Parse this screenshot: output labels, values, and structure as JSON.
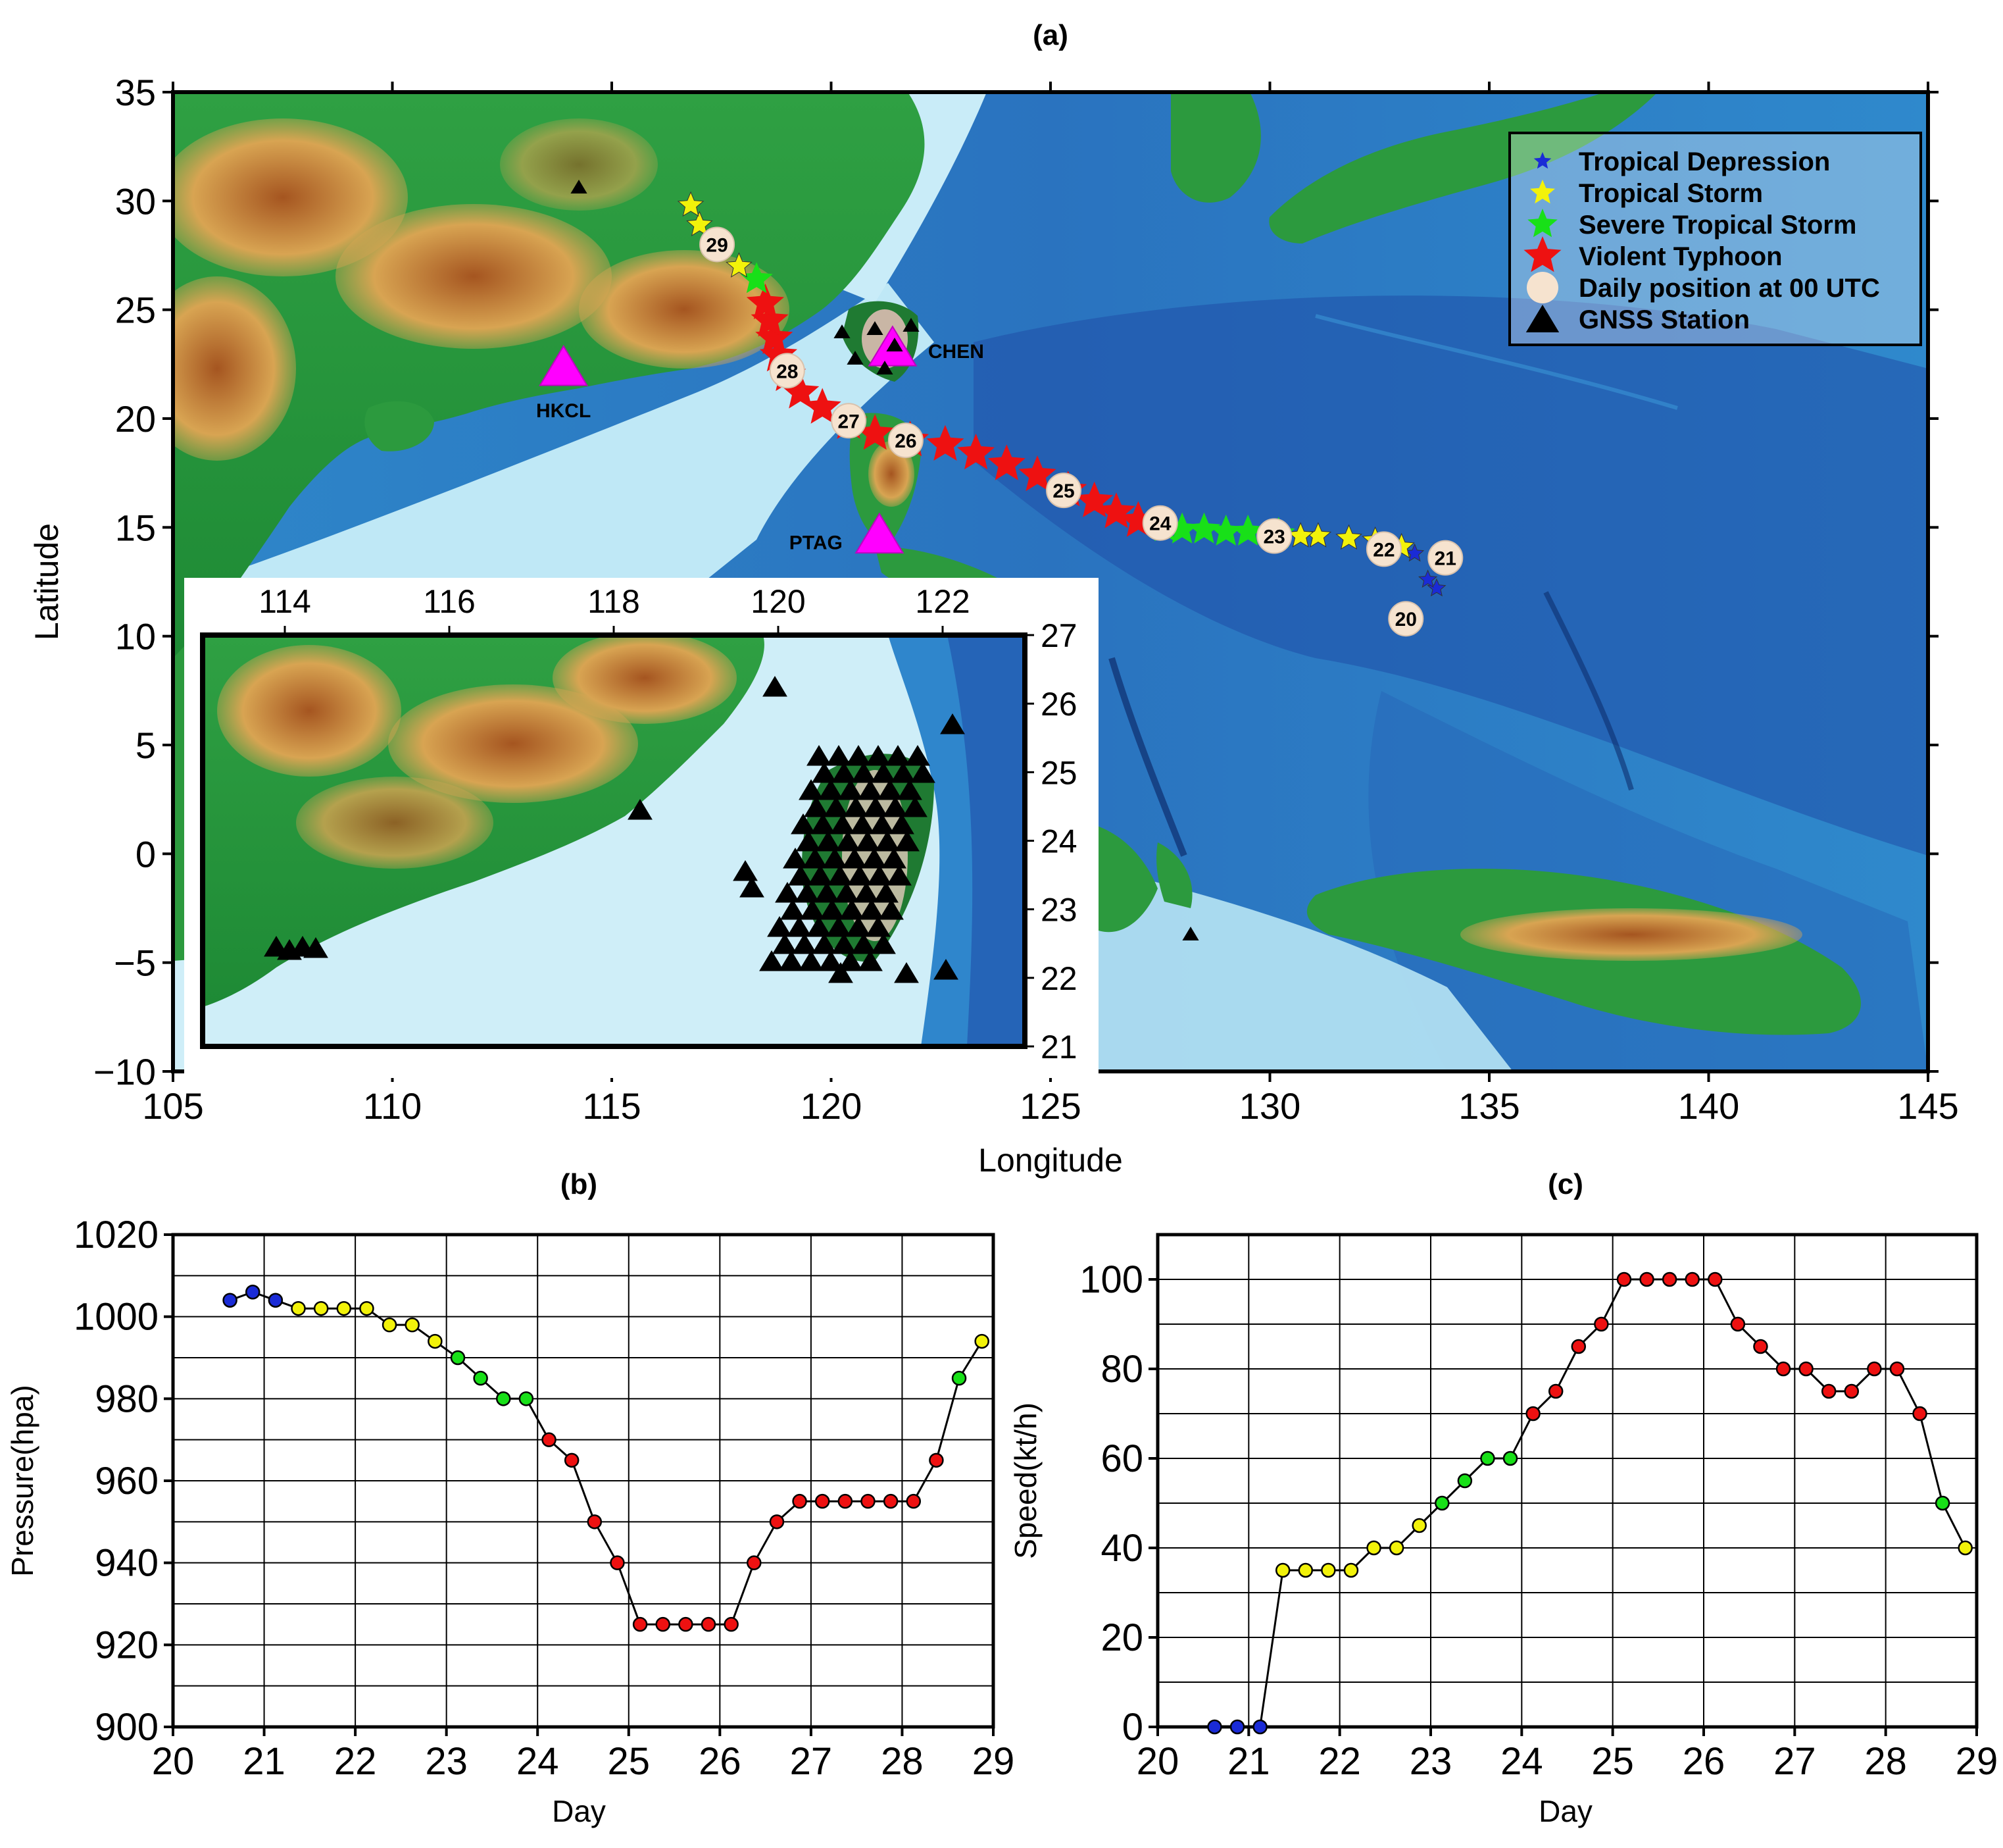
{
  "chart_data": [
    {
      "panel": "(a)",
      "type": "map",
      "xlabel": "Longitude",
      "ylabel": "Latitude",
      "xlim": [
        105,
        145
      ],
      "ylim": [
        -10,
        35
      ],
      "xticks": [
        "105",
        "110",
        "115",
        "120",
        "125",
        "130",
        "135",
        "140",
        "145"
      ],
      "yticks": [
        "35",
        "30",
        "25",
        "20",
        "15",
        "10",
        "5",
        "0",
        "−5",
        "−10"
      ],
      "legend": {
        "placement": "top-right",
        "entries": [
          {
            "label": "Tropical Depression",
            "symbol": "star",
            "color": "#1a2bd6"
          },
          {
            "label": "Tropical Storm",
            "symbol": "star",
            "color": "#f2f20a"
          },
          {
            "label": "Severe Tropical Storm",
            "symbol": "star",
            "color": "#18e018"
          },
          {
            "label": "Violent Typhoon",
            "symbol": "star",
            "color": "#ee1111"
          },
          {
            "label": "Daily position at 00 UTC",
            "symbol": "circle",
            "color": "#f6e3cf"
          },
          {
            "label": "GNSS Station",
            "symbol": "triangle",
            "color": "#000000"
          }
        ]
      },
      "track": [
        {
          "lon": 133.8,
          "lat": 12.2,
          "cat": "TD"
        },
        {
          "lon": 133.6,
          "lat": 12.6,
          "cat": "TD"
        },
        {
          "lon": 133.3,
          "lat": 13.8,
          "cat": "TD"
        },
        {
          "lon": 133.0,
          "lat": 14.1,
          "cat": "TS"
        },
        {
          "lon": 132.4,
          "lat": 14.4,
          "cat": "TS"
        },
        {
          "lon": 131.8,
          "lat": 14.5,
          "cat": "TS"
        },
        {
          "lon": 131.1,
          "lat": 14.6,
          "cat": "TS"
        },
        {
          "lon": 130.7,
          "lat": 14.6,
          "cat": "TS"
        },
        {
          "lon": 130.2,
          "lat": 14.7,
          "cat": "STS"
        },
        {
          "lon": 129.5,
          "lat": 14.8,
          "cat": "STS"
        },
        {
          "lon": 129.0,
          "lat": 14.8,
          "cat": "STS"
        },
        {
          "lon": 128.5,
          "lat": 14.9,
          "cat": "STS"
        },
        {
          "lon": 128.0,
          "lat": 14.9,
          "cat": "STS"
        },
        {
          "lon": 127.6,
          "lat": 15.0,
          "cat": "STS"
        },
        {
          "lon": 127.0,
          "lat": 15.3,
          "cat": "VTY"
        },
        {
          "lon": 126.5,
          "lat": 15.7,
          "cat": "VTY"
        },
        {
          "lon": 126.0,
          "lat": 16.2,
          "cat": "VTY"
        },
        {
          "lon": 125.4,
          "lat": 16.7,
          "cat": "VTY"
        },
        {
          "lon": 124.7,
          "lat": 17.4,
          "cat": "VTY"
        },
        {
          "lon": 124.0,
          "lat": 17.9,
          "cat": "VTY"
        },
        {
          "lon": 123.3,
          "lat": 18.4,
          "cat": "VTY"
        },
        {
          "lon": 122.6,
          "lat": 18.8,
          "cat": "VTY"
        },
        {
          "lon": 121.8,
          "lat": 19.0,
          "cat": "VTY"
        },
        {
          "lon": 121.0,
          "lat": 19.3,
          "cat": "VTY"
        },
        {
          "lon": 120.4,
          "lat": 19.8,
          "cat": "VTY"
        },
        {
          "lon": 119.8,
          "lat": 20.5,
          "cat": "VTY"
        },
        {
          "lon": 119.3,
          "lat": 21.2,
          "cat": "VTY"
        },
        {
          "lon": 119.0,
          "lat": 22.0,
          "cat": "VTY"
        },
        {
          "lon": 118.8,
          "lat": 22.9,
          "cat": "VTY"
        },
        {
          "lon": 118.7,
          "lat": 23.7,
          "cat": "VTY"
        },
        {
          "lon": 118.6,
          "lat": 24.5,
          "cat": "VTY"
        },
        {
          "lon": 118.5,
          "lat": 25.3,
          "cat": "VTY"
        },
        {
          "lon": 118.3,
          "lat": 26.4,
          "cat": "STS"
        },
        {
          "lon": 117.9,
          "lat": 27.0,
          "cat": "TS"
        },
        {
          "lon": 117.4,
          "lat": 27.8,
          "cat": "TS"
        },
        {
          "lon": 117.0,
          "lat": 28.9,
          "cat": "TS"
        },
        {
          "lon": 116.8,
          "lat": 29.8,
          "cat": "TS"
        }
      ],
      "daily_positions": [
        {
          "label": "20",
          "lon": 133.1,
          "lat": 10.8
        },
        {
          "label": "21",
          "lon": 134.0,
          "lat": 13.6
        },
        {
          "label": "22",
          "lon": 132.6,
          "lat": 14.0
        },
        {
          "label": "23",
          "lon": 130.1,
          "lat": 14.6
        },
        {
          "label": "24",
          "lon": 127.5,
          "lat": 15.2
        },
        {
          "label": "25",
          "lon": 125.3,
          "lat": 16.7
        },
        {
          "label": "26",
          "lon": 121.7,
          "lat": 19.0
        },
        {
          "label": "27",
          "lon": 120.4,
          "lat": 19.9
        },
        {
          "label": "28",
          "lon": 119.0,
          "lat": 22.2
        },
        {
          "label": "29",
          "lon": 117.4,
          "lat": 28.0
        }
      ],
      "stations": [
        {
          "label": "CHEN",
          "lon": 121.4,
          "lat": 23.2
        },
        {
          "label": "HKCL",
          "lon": 113.9,
          "lat": 22.3
        },
        {
          "label": "PTAG",
          "lon": 121.1,
          "lat": 14.6
        }
      ],
      "inset": {
        "xlim": [
          113,
          123
        ],
        "ylim": [
          21,
          27
        ],
        "xticks": [
          "114",
          "116",
          "118",
          "120",
          "122"
        ],
        "yticks": [
          "27",
          "26",
          "25",
          "24",
          "23",
          "22",
          "21"
        ]
      }
    },
    {
      "panel": "(b)",
      "type": "line",
      "xlabel": "Day",
      "ylabel": "Pressure(hpa)",
      "xlim": [
        20,
        29
      ],
      "ylim": [
        900,
        1020
      ],
      "xticks": [
        "20",
        "21",
        "22",
        "23",
        "24",
        "25",
        "26",
        "27",
        "28",
        "29"
      ],
      "yticks": [
        "900",
        "920",
        "940",
        "960",
        "980",
        "1000",
        "1020"
      ],
      "x": [
        20.625,
        20.875,
        21.125,
        21.375,
        21.625,
        21.875,
        22.125,
        22.375,
        22.625,
        22.875,
        23.125,
        23.375,
        23.625,
        23.875,
        24.125,
        24.375,
        24.625,
        24.875,
        25.125,
        25.375,
        25.625,
        25.875,
        26.125,
        26.375,
        26.625,
        26.875,
        27.125,
        27.375,
        27.625,
        27.875,
        28.125,
        28.375,
        28.625,
        28.875
      ],
      "y": [
        1004,
        1006,
        1004,
        1002,
        1002,
        1002,
        1002,
        998,
        998,
        994,
        990,
        985,
        980,
        980,
        970,
        965,
        950,
        940,
        925,
        925,
        925,
        925,
        925,
        940,
        950,
        955,
        955,
        955,
        955,
        955,
        955,
        965,
        985,
        994
      ],
      "categories": [
        "TD",
        "TD",
        "TD",
        "TS",
        "TS",
        "TS",
        "TS",
        "TS",
        "TS",
        "TS",
        "STS",
        "STS",
        "STS",
        "STS",
        "VTY",
        "VTY",
        "VTY",
        "VTY",
        "VTY",
        "VTY",
        "VTY",
        "VTY",
        "VTY",
        "VTY",
        "VTY",
        "VTY",
        "VTY",
        "VTY",
        "VTY",
        "VTY",
        "VTY",
        "VTY",
        "STS",
        "TS"
      ]
    },
    {
      "panel": "(c)",
      "type": "line",
      "xlabel": "Day",
      "ylabel": "Speed(kt/h)",
      "xlim": [
        20,
        29
      ],
      "ylim": [
        0,
        110
      ],
      "xticks": [
        "20",
        "21",
        "22",
        "23",
        "24",
        "25",
        "26",
        "27",
        "28",
        "29"
      ],
      "yticks": [
        "0",
        "20",
        "40",
        "60",
        "80",
        "100"
      ],
      "x": [
        20.625,
        20.875,
        21.125,
        21.375,
        21.625,
        21.875,
        22.125,
        22.375,
        22.625,
        22.875,
        23.125,
        23.375,
        23.625,
        23.875,
        24.125,
        24.375,
        24.625,
        24.875,
        25.125,
        25.375,
        25.625,
        25.875,
        26.125,
        26.375,
        26.625,
        26.875,
        27.125,
        27.375,
        27.625,
        27.875,
        28.125,
        28.375,
        28.625,
        28.875
      ],
      "y": [
        0,
        0,
        0,
        35,
        35,
        35,
        35,
        40,
        40,
        45,
        50,
        55,
        60,
        60,
        70,
        75,
        85,
        90,
        100,
        100,
        100,
        100,
        100,
        90,
        85,
        80,
        80,
        75,
        75,
        80,
        80,
        70,
        50,
        40
      ],
      "categories": [
        "TD",
        "TD",
        "TD",
        "TS",
        "TS",
        "TS",
        "TS",
        "TS",
        "TS",
        "TS",
        "STS",
        "STS",
        "STS",
        "STS",
        "VTY",
        "VTY",
        "VTY",
        "VTY",
        "VTY",
        "VTY",
        "VTY",
        "VTY",
        "VTY",
        "VTY",
        "VTY",
        "VTY",
        "VTY",
        "VTY",
        "VTY",
        "VTY",
        "VTY",
        "VTY",
        "STS",
        "TS"
      ]
    }
  ],
  "colors": {
    "TD": "#1a2bd6",
    "TS": "#f2f20a",
    "STS": "#18e018",
    "VTY": "#ee1111",
    "daily": "#f6e3cf",
    "station_highlight": "#ff00ff",
    "ocean_deep": "#1f4fa8",
    "ocean_mid": "#2f86cc",
    "ocean_shallow": "#bfe8f6",
    "land_low": "#1f9a3a",
    "land_mid": "#d9b45a",
    "land_high": "#a0521f"
  },
  "icons": {
    "track_marker": "star-icon",
    "daily_marker": "circle-icon",
    "station_marker": "triangle-icon"
  }
}
